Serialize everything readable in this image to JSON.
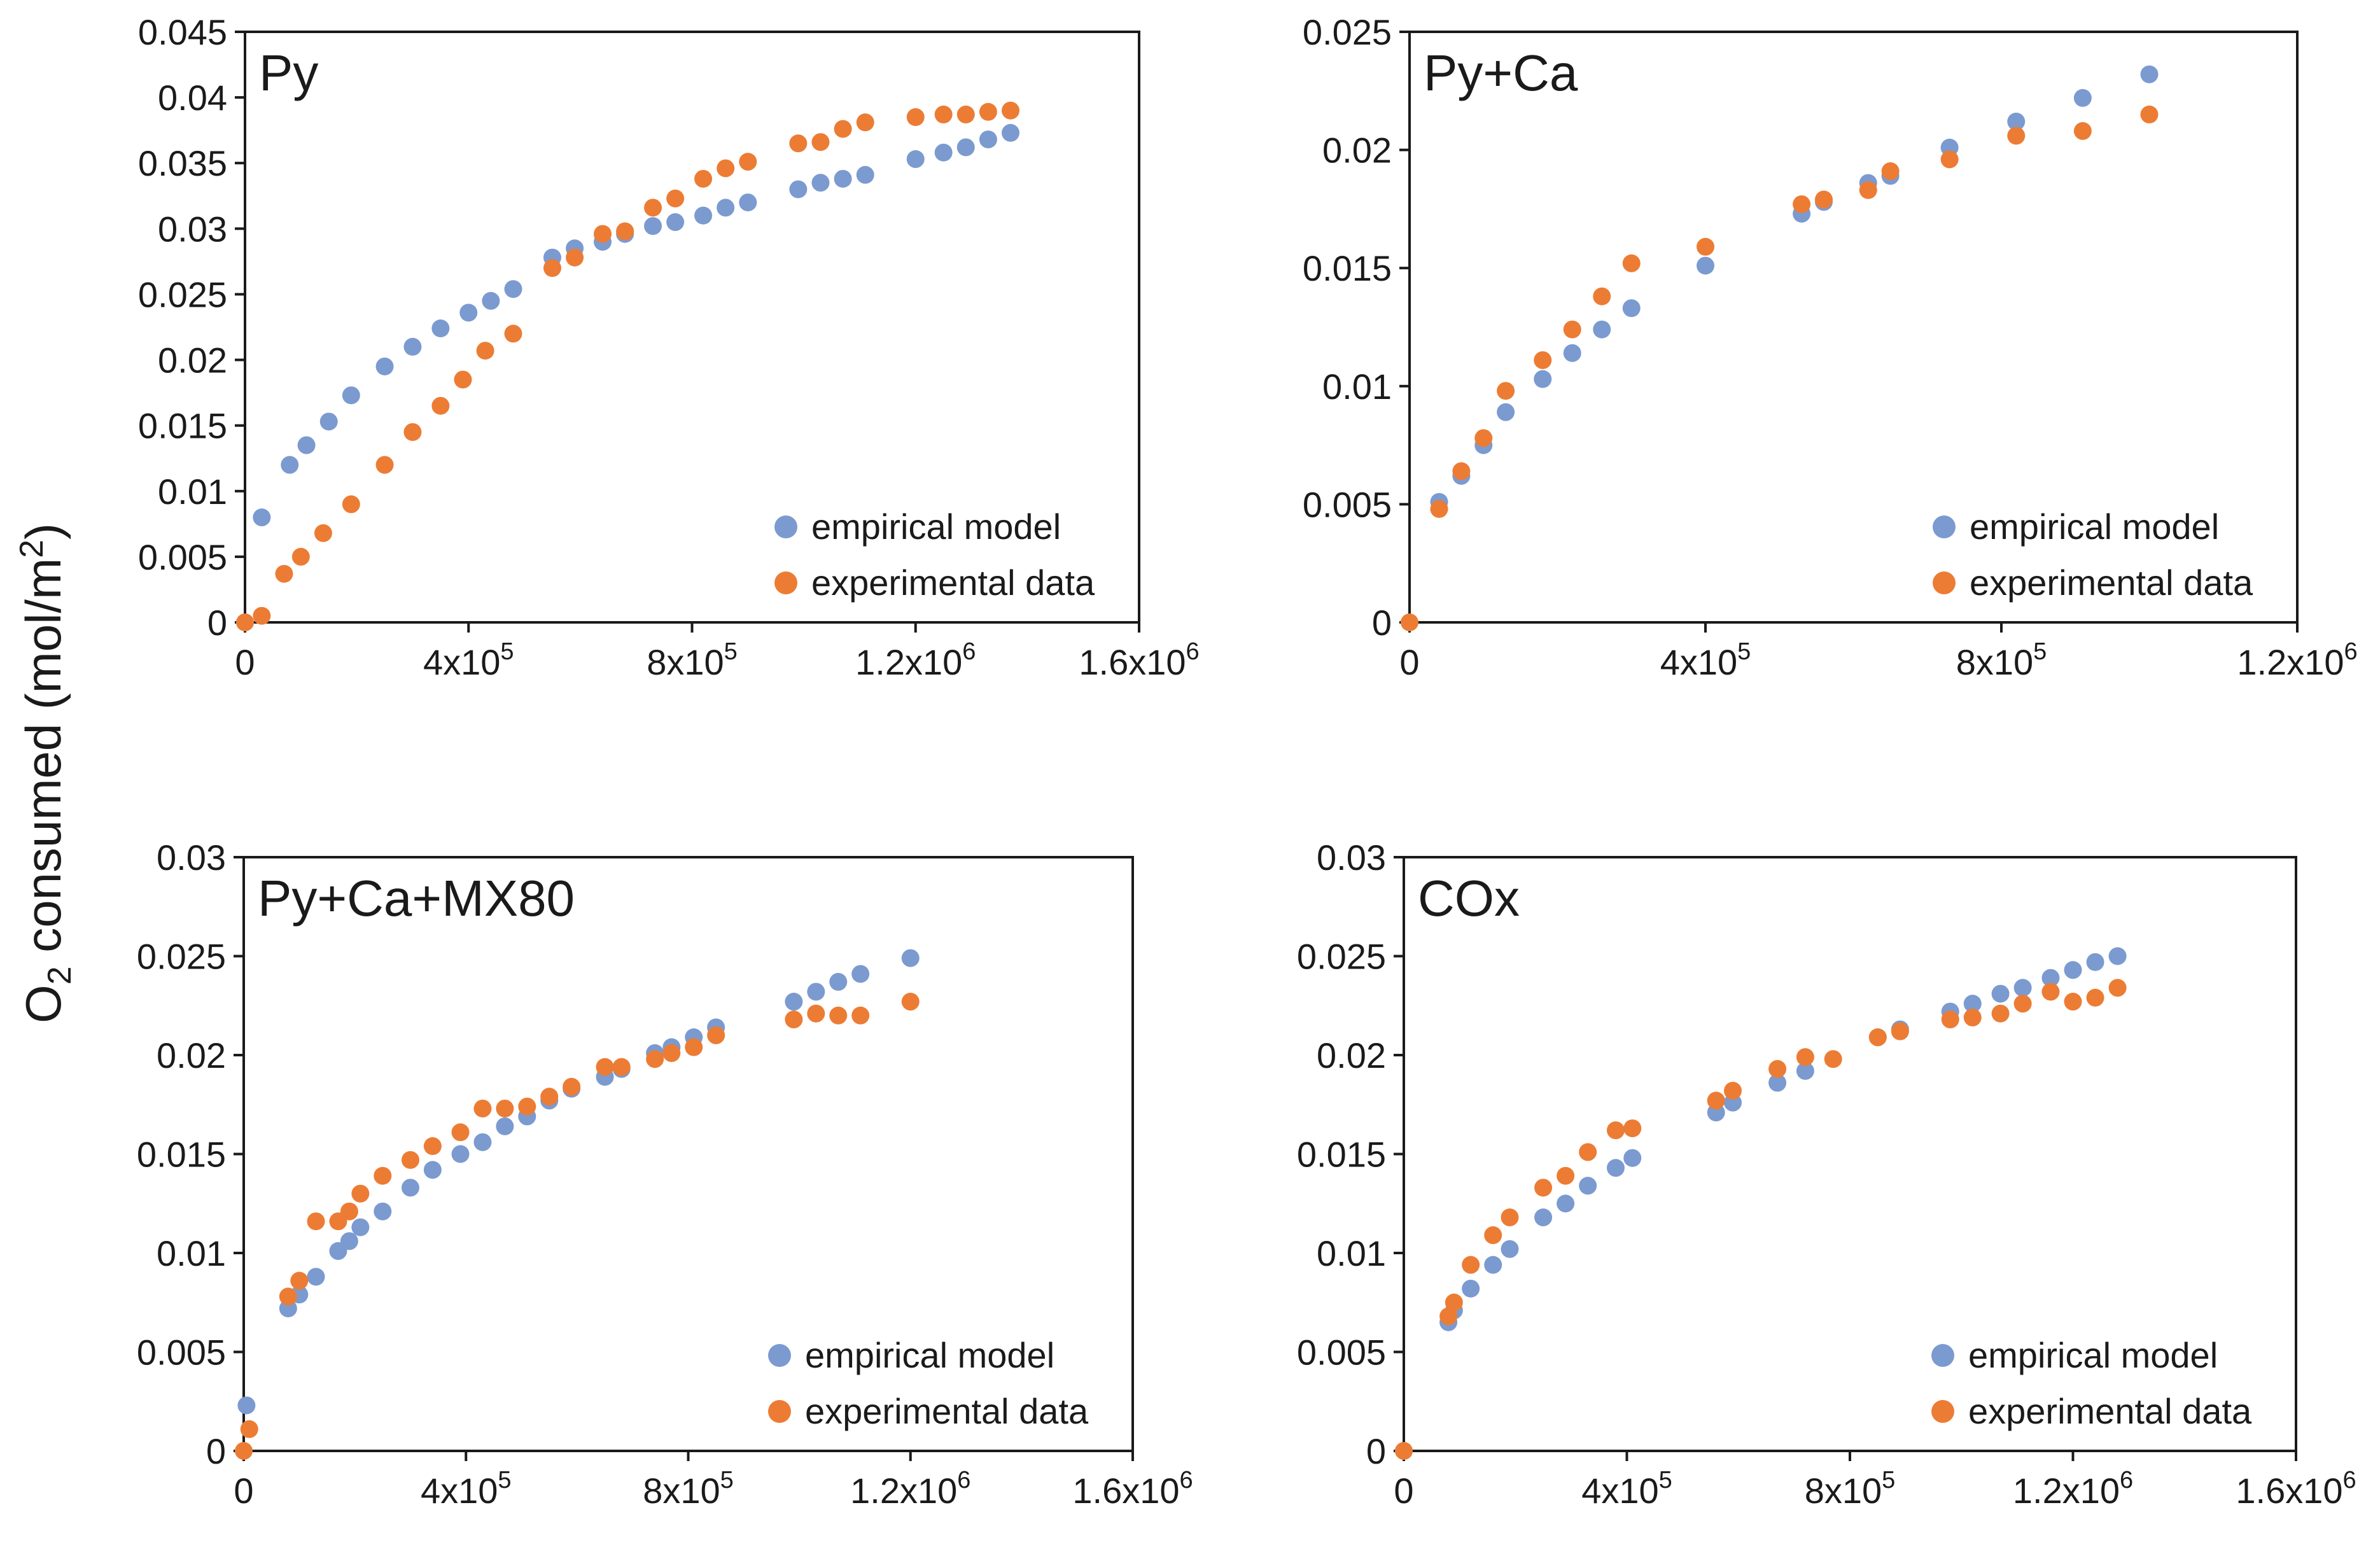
{
  "figure": {
    "ylabel_prefix": "O",
    "ylabel_sub": "2",
    "ylabel_main": " consumed (mol/m",
    "ylabel_sup": "2",
    "ylabel_end": ")"
  },
  "colors": {
    "empirical": "#7b9ad0",
    "experimental": "#ec7c34",
    "axis": "#1a1a1a"
  },
  "chart_data": [
    {
      "type": "scatter",
      "title": "Py",
      "xlim": [
        0,
        1600000
      ],
      "ylim": [
        0,
        0.045
      ],
      "xticks": [
        0,
        400000,
        800000,
        1200000,
        1600000
      ],
      "xtick_labels": [
        {
          "base": "0",
          "exp": ""
        },
        {
          "base": "4x10",
          "exp": "5"
        },
        {
          "base": "8x10",
          "exp": "5"
        },
        {
          "base": "1.2x10",
          "exp": "6"
        },
        {
          "base": "1.6x10",
          "exp": "6"
        }
      ],
      "yticks": [
        0,
        0.005,
        0.01,
        0.015,
        0.02,
        0.025,
        0.03,
        0.035,
        0.04,
        0.045
      ],
      "ytick_labels": [
        "0",
        "0.005",
        "0.01",
        "0.015",
        "0.02",
        "0.025",
        "0.03",
        "0.035",
        "0.04",
        "0.045"
      ],
      "legend": [
        "empirical model",
        "experimental data"
      ],
      "series": [
        {
          "name": "empirical model",
          "points": [
            [
              0,
              0
            ],
            [
              30000,
              0.008
            ],
            [
              80000,
              0.012
            ],
            [
              110000,
              0.0135
            ],
            [
              150000,
              0.0153
            ],
            [
              190000,
              0.0173
            ],
            [
              250000,
              0.0195
            ],
            [
              300000,
              0.021
            ],
            [
              350000,
              0.0224
            ],
            [
              400000,
              0.0236
            ],
            [
              440000,
              0.0245
            ],
            [
              480000,
              0.0254
            ],
            [
              550000,
              0.0278
            ],
            [
              590000,
              0.0285
            ],
            [
              640000,
              0.029
            ],
            [
              680000,
              0.0296
            ],
            [
              730000,
              0.0302
            ],
            [
              770000,
              0.0305
            ],
            [
              820000,
              0.031
            ],
            [
              860000,
              0.0316
            ],
            [
              900000,
              0.032
            ],
            [
              990000,
              0.033
            ],
            [
              1030000,
              0.0335
            ],
            [
              1070000,
              0.0338
            ],
            [
              1110000,
              0.0341
            ],
            [
              1200000,
              0.0353
            ],
            [
              1250000,
              0.0358
            ],
            [
              1290000,
              0.0362
            ],
            [
              1330000,
              0.0368
            ],
            [
              1370000,
              0.0373
            ]
          ]
        },
        {
          "name": "experimental data",
          "points": [
            [
              0,
              0
            ],
            [
              30000,
              0.0005
            ],
            [
              70000,
              0.0037
            ],
            [
              100000,
              0.005
            ],
            [
              140000,
              0.0068
            ],
            [
              190000,
              0.009
            ],
            [
              250000,
              0.012
            ],
            [
              300000,
              0.0145
            ],
            [
              350000,
              0.0165
            ],
            [
              390000,
              0.0185
            ],
            [
              430000,
              0.0207
            ],
            [
              480000,
              0.022
            ],
            [
              550000,
              0.027
            ],
            [
              590000,
              0.0278
            ],
            [
              640000,
              0.0296
            ],
            [
              680000,
              0.0298
            ],
            [
              730000,
              0.0316
            ],
            [
              770000,
              0.0323
            ],
            [
              820000,
              0.0338
            ],
            [
              860000,
              0.0346
            ],
            [
              900000,
              0.0351
            ],
            [
              990000,
              0.0365
            ],
            [
              1030000,
              0.0366
            ],
            [
              1070000,
              0.0376
            ],
            [
              1110000,
              0.0381
            ],
            [
              1200000,
              0.0385
            ],
            [
              1250000,
              0.0387
            ],
            [
              1290000,
              0.0387
            ],
            [
              1330000,
              0.0389
            ],
            [
              1370000,
              0.039
            ]
          ]
        }
      ]
    },
    {
      "type": "scatter",
      "title": "Py+Ca",
      "xlim": [
        0,
        1200000
      ],
      "ylim": [
        0,
        0.025
      ],
      "xticks": [
        0,
        400000,
        800000,
        1200000
      ],
      "xtick_labels": [
        {
          "base": "0",
          "exp": ""
        },
        {
          "base": "4x10",
          "exp": "5"
        },
        {
          "base": "8x10",
          "exp": "5"
        },
        {
          "base": "1.2x10",
          "exp": "6"
        }
      ],
      "yticks": [
        0,
        0.005,
        0.01,
        0.015,
        0.02,
        0.025
      ],
      "ytick_labels": [
        "0",
        "0.005",
        "0.01",
        "0.015",
        "0.02",
        "0.025"
      ],
      "legend": [
        "empirical model",
        "experimental data"
      ],
      "series": [
        {
          "name": "empirical model",
          "points": [
            [
              40000,
              0.0051
            ],
            [
              70000,
              0.0062
            ],
            [
              100000,
              0.0075
            ],
            [
              130000,
              0.0089
            ],
            [
              180000,
              0.0103
            ],
            [
              220000,
              0.0114
            ],
            [
              260000,
              0.0124
            ],
            [
              300000,
              0.0133
            ],
            [
              400000,
              0.0151
            ],
            [
              530000,
              0.0173
            ],
            [
              560000,
              0.0178
            ],
            [
              620000,
              0.0186
            ],
            [
              650000,
              0.0189
            ],
            [
              730000,
              0.0201
            ],
            [
              820000,
              0.0212
            ],
            [
              910000,
              0.0222
            ],
            [
              1000000,
              0.0232
            ]
          ]
        },
        {
          "name": "experimental data",
          "points": [
            [
              0,
              0
            ],
            [
              40000,
              0.0048
            ],
            [
              70000,
              0.0064
            ],
            [
              100000,
              0.0078
            ],
            [
              130000,
              0.0098
            ],
            [
              180000,
              0.0111
            ],
            [
              220000,
              0.0124
            ],
            [
              260000,
              0.0138
            ],
            [
              300000,
              0.0152
            ],
            [
              400000,
              0.0159
            ],
            [
              530000,
              0.0177
            ],
            [
              560000,
              0.0179
            ],
            [
              620000,
              0.0183
            ],
            [
              650000,
              0.0191
            ],
            [
              730000,
              0.0196
            ],
            [
              820000,
              0.0206
            ],
            [
              910000,
              0.0208
            ],
            [
              1000000,
              0.0215
            ]
          ]
        }
      ]
    },
    {
      "type": "scatter",
      "title": "Py+Ca+MX80",
      "xlim": [
        0,
        1600000
      ],
      "ylim": [
        0,
        0.03
      ],
      "xticks": [
        0,
        400000,
        800000,
        1200000,
        1600000
      ],
      "xtick_labels": [
        {
          "base": "0",
          "exp": ""
        },
        {
          "base": "4x10",
          "exp": "5"
        },
        {
          "base": "8x10",
          "exp": "5"
        },
        {
          "base": "1.2x10",
          "exp": "6"
        },
        {
          "base": "1.6x10",
          "exp": "6"
        }
      ],
      "yticks": [
        0,
        0.005,
        0.01,
        0.015,
        0.02,
        0.025,
        0.03
      ],
      "ytick_labels": [
        "0",
        "0.005",
        "0.01",
        "0.015",
        "0.02",
        "0.025",
        "0.03"
      ],
      "legend": [
        "empirical model",
        "experimental data"
      ],
      "series": [
        {
          "name": "empirical model",
          "points": [
            [
              5000,
              0.0023
            ],
            [
              80000,
              0.0072
            ],
            [
              100000,
              0.0079
            ],
            [
              130000,
              0.0088
            ],
            [
              170000,
              0.0101
            ],
            [
              190000,
              0.0106
            ],
            [
              210000,
              0.0113
            ],
            [
              250000,
              0.0121
            ],
            [
              300000,
              0.0133
            ],
            [
              340000,
              0.0142
            ],
            [
              390000,
              0.015
            ],
            [
              430000,
              0.0156
            ],
            [
              470000,
              0.0164
            ],
            [
              510000,
              0.0169
            ],
            [
              550000,
              0.0177
            ],
            [
              590000,
              0.0183
            ],
            [
              650000,
              0.0189
            ],
            [
              680000,
              0.0193
            ],
            [
              740000,
              0.0201
            ],
            [
              770000,
              0.0204
            ],
            [
              810000,
              0.0209
            ],
            [
              850000,
              0.0214
            ],
            [
              990000,
              0.0227
            ],
            [
              1030000,
              0.0232
            ],
            [
              1070000,
              0.0237
            ],
            [
              1110000,
              0.0241
            ],
            [
              1200000,
              0.0249
            ]
          ]
        },
        {
          "name": "experimental data",
          "points": [
            [
              0,
              0
            ],
            [
              10000,
              0.0011
            ],
            [
              80000,
              0.0078
            ],
            [
              100000,
              0.0086
            ],
            [
              130000,
              0.0116
            ],
            [
              170000,
              0.0116
            ],
            [
              190000,
              0.0121
            ],
            [
              210000,
              0.013
            ],
            [
              250000,
              0.0139
            ],
            [
              300000,
              0.0147
            ],
            [
              340000,
              0.0154
            ],
            [
              390000,
              0.0161
            ],
            [
              430000,
              0.0173
            ],
            [
              470000,
              0.0173
            ],
            [
              510000,
              0.0174
            ],
            [
              550000,
              0.0179
            ],
            [
              590000,
              0.0184
            ],
            [
              650000,
              0.0194
            ],
            [
              680000,
              0.0194
            ],
            [
              740000,
              0.0198
            ],
            [
              770000,
              0.0201
            ],
            [
              810000,
              0.0204
            ],
            [
              850000,
              0.021
            ],
            [
              990000,
              0.0218
            ],
            [
              1030000,
              0.0221
            ],
            [
              1070000,
              0.022
            ],
            [
              1110000,
              0.022
            ],
            [
              1200000,
              0.0227
            ]
          ]
        }
      ]
    },
    {
      "type": "scatter",
      "title": "COx",
      "xlim": [
        0,
        1600000
      ],
      "ylim": [
        0,
        0.03
      ],
      "xticks": [
        0,
        400000,
        800000,
        1200000,
        1600000
      ],
      "xtick_labels": [
        {
          "base": "0",
          "exp": ""
        },
        {
          "base": "4x10",
          "exp": "5"
        },
        {
          "base": "8x10",
          "exp": "5"
        },
        {
          "base": "1.2x10",
          "exp": "6"
        },
        {
          "base": "1.6x10",
          "exp": "6"
        }
      ],
      "yticks": [
        0,
        0.005,
        0.01,
        0.015,
        0.02,
        0.025,
        0.03
      ],
      "ytick_labels": [
        "0",
        "0.005",
        "0.01",
        "0.015",
        "0.02",
        "0.025",
        "0.03"
      ],
      "legend": [
        "empirical model",
        "experimental data"
      ],
      "series": [
        {
          "name": "empirical model",
          "points": [
            [
              0,
              0
            ],
            [
              80000,
              0.0065
            ],
            [
              90000,
              0.0071
            ],
            [
              120000,
              0.0082
            ],
            [
              160000,
              0.0094
            ],
            [
              190000,
              0.0102
            ],
            [
              250000,
              0.0118
            ],
            [
              290000,
              0.0125
            ],
            [
              330000,
              0.0134
            ],
            [
              380000,
              0.0143
            ],
            [
              410000,
              0.0148
            ],
            [
              560000,
              0.0171
            ],
            [
              590000,
              0.0176
            ],
            [
              670000,
              0.0186
            ],
            [
              720000,
              0.0192
            ],
            [
              850000,
              0.0209
            ],
            [
              890000,
              0.0213
            ],
            [
              980000,
              0.0222
            ],
            [
              1020000,
              0.0226
            ],
            [
              1070000,
              0.0231
            ],
            [
              1110000,
              0.0234
            ],
            [
              1160000,
              0.0239
            ],
            [
              1200000,
              0.0243
            ],
            [
              1240000,
              0.0247
            ],
            [
              1280000,
              0.025
            ]
          ]
        },
        {
          "name": "experimental data",
          "points": [
            [
              0,
              0
            ],
            [
              80000,
              0.0068
            ],
            [
              90000,
              0.0075
            ],
            [
              120000,
              0.0094
            ],
            [
              160000,
              0.0109
            ],
            [
              190000,
              0.0118
            ],
            [
              250000,
              0.0133
            ],
            [
              290000,
              0.0139
            ],
            [
              330000,
              0.0151
            ],
            [
              380000,
              0.0162
            ],
            [
              410000,
              0.0163
            ],
            [
              560000,
              0.0177
            ],
            [
              590000,
              0.0182
            ],
            [
              670000,
              0.0193
            ],
            [
              720000,
              0.0199
            ],
            [
              770000,
              0.0198
            ],
            [
              850000,
              0.0209
            ],
            [
              890000,
              0.0212
            ],
            [
              980000,
              0.0218
            ],
            [
              1020000,
              0.0219
            ],
            [
              1070000,
              0.0221
            ],
            [
              1110000,
              0.0226
            ],
            [
              1160000,
              0.0232
            ],
            [
              1200000,
              0.0227
            ],
            [
              1240000,
              0.0229
            ],
            [
              1280000,
              0.0234
            ]
          ]
        }
      ]
    }
  ]
}
